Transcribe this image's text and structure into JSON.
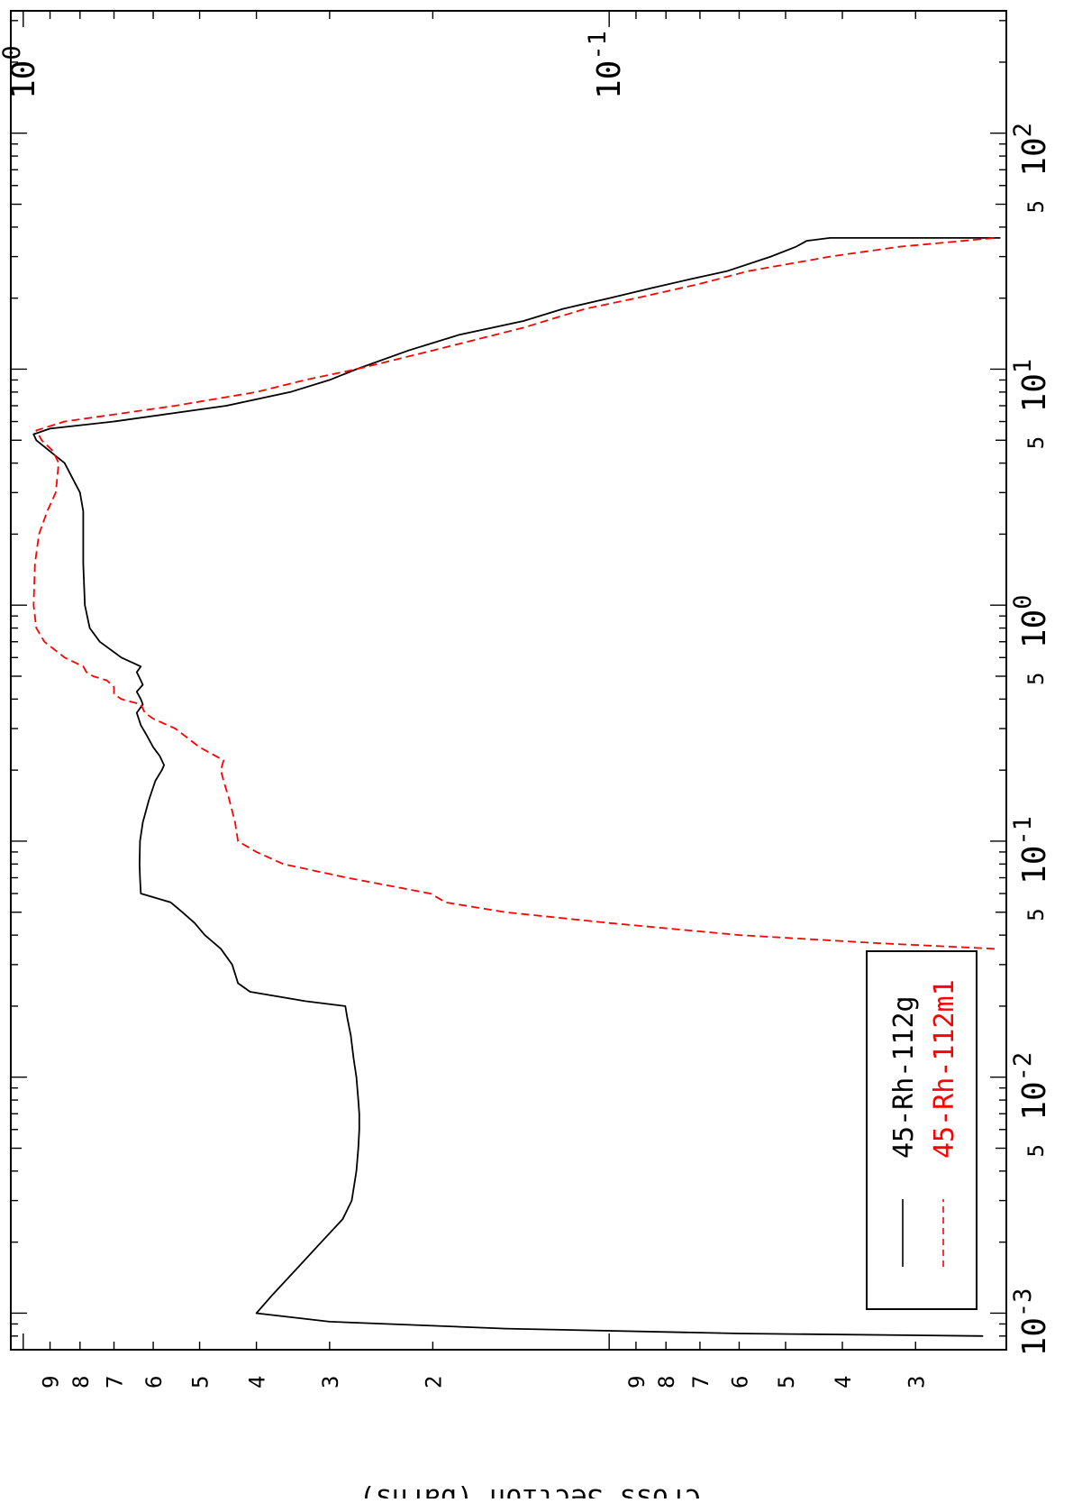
{
  "chart_data": {
    "type": "line",
    "title": "",
    "orientation": "rotated-90-ccw",
    "xlabel": "",
    "ylabel": "Cross Section (barns)",
    "x_scale": "log",
    "y_scale": "log",
    "xlim": [
      0.0007,
      330
    ],
    "ylim": [
      0.021,
      1.05
    ],
    "x_major_ticks": [
      {
        "value": 0.001,
        "base": "10",
        "exp": "-3"
      },
      {
        "value": 0.01,
        "base": "10",
        "exp": "-2"
      },
      {
        "value": 0.1,
        "base": "10",
        "exp": "-1"
      },
      {
        "value": 1,
        "base": "10",
        "exp": "0"
      },
      {
        "value": 10,
        "base": "10",
        "exp": "1"
      },
      {
        "value": 100,
        "base": "10",
        "exp": "2"
      }
    ],
    "x_minor_labels": [
      {
        "value": 0.005,
        "label": "5"
      },
      {
        "value": 0.05,
        "label": "5"
      },
      {
        "value": 0.5,
        "label": "5"
      },
      {
        "value": 5,
        "label": "5"
      },
      {
        "value": 50,
        "label": "5"
      }
    ],
    "y_major_ticks": [
      {
        "value": 0.1,
        "base": "10",
        "exp": "-1"
      },
      {
        "value": 1,
        "base": "10",
        "exp": "0"
      }
    ],
    "y_minor_labels": [
      {
        "value": 0.03,
        "label": "3"
      },
      {
        "value": 0.04,
        "label": "4"
      },
      {
        "value": 0.05,
        "label": "5"
      },
      {
        "value": 0.06,
        "label": "6"
      },
      {
        "value": 0.07,
        "label": "7"
      },
      {
        "value": 0.08,
        "label": "8"
      },
      {
        "value": 0.09,
        "label": "9"
      },
      {
        "value": 0.2,
        "label": "2"
      },
      {
        "value": 0.3,
        "label": "3"
      },
      {
        "value": 0.4,
        "label": "4"
      },
      {
        "value": 0.5,
        "label": "5"
      },
      {
        "value": 0.6,
        "label": "6"
      },
      {
        "value": 0.7,
        "label": "7"
      },
      {
        "value": 0.8,
        "label": "8"
      },
      {
        "value": 0.9,
        "label": "9"
      }
    ],
    "series": [
      {
        "name": "45-Rh-112g",
        "color": "#000000",
        "dash": "solid",
        "points": [
          [
            0.0008,
            0.023
          ],
          [
            0.00082,
            0.06
          ],
          [
            0.00086,
            0.15
          ],
          [
            0.00092,
            0.3
          ],
          [
            0.001,
            0.4
          ],
          [
            0.0012,
            0.375
          ],
          [
            0.0015,
            0.345
          ],
          [
            0.002,
            0.31
          ],
          [
            0.0025,
            0.285
          ],
          [
            0.003,
            0.275
          ],
          [
            0.004,
            0.27
          ],
          [
            0.005,
            0.268
          ],
          [
            0.006,
            0.267
          ],
          [
            0.007,
            0.267
          ],
          [
            0.008,
            0.268
          ],
          [
            0.01,
            0.27
          ],
          [
            0.012,
            0.273
          ],
          [
            0.015,
            0.276
          ],
          [
            0.018,
            0.28
          ],
          [
            0.02,
            0.282
          ],
          [
            0.021,
            0.33
          ],
          [
            0.023,
            0.41
          ],
          [
            0.025,
            0.43
          ],
          [
            0.03,
            0.44
          ],
          [
            0.035,
            0.46
          ],
          [
            0.04,
            0.49
          ],
          [
            0.045,
            0.51
          ],
          [
            0.05,
            0.535
          ],
          [
            0.055,
            0.56
          ],
          [
            0.06,
            0.63
          ],
          [
            0.07,
            0.632
          ],
          [
            0.08,
            0.633
          ],
          [
            0.1,
            0.632
          ],
          [
            0.12,
            0.625
          ],
          [
            0.15,
            0.61
          ],
          [
            0.18,
            0.595
          ],
          [
            0.2,
            0.58
          ],
          [
            0.21,
            0.575
          ],
          [
            0.23,
            0.585
          ],
          [
            0.25,
            0.6
          ],
          [
            0.28,
            0.615
          ],
          [
            0.31,
            0.63
          ],
          [
            0.35,
            0.64
          ],
          [
            0.38,
            0.625
          ],
          [
            0.4,
            0.63
          ],
          [
            0.43,
            0.64
          ],
          [
            0.46,
            0.625
          ],
          [
            0.48,
            0.63
          ],
          [
            0.52,
            0.64
          ],
          [
            0.55,
            0.63
          ],
          [
            0.6,
            0.68
          ],
          [
            0.7,
            0.74
          ],
          [
            0.8,
            0.77
          ],
          [
            1.0,
            0.785
          ],
          [
            1.5,
            0.79
          ],
          [
            2.0,
            0.79
          ],
          [
            2.5,
            0.79
          ],
          [
            3.0,
            0.8
          ],
          [
            4.0,
            0.85
          ],
          [
            5.0,
            0.95
          ],
          [
            5.3,
            0.96
          ],
          [
            5.6,
            0.9
          ],
          [
            6.0,
            0.7
          ],
          [
            7.0,
            0.45
          ],
          [
            8.0,
            0.35
          ],
          [
            9.0,
            0.3
          ],
          [
            10.0,
            0.27
          ],
          [
            12.0,
            0.22
          ],
          [
            14.0,
            0.18
          ],
          [
            16.0,
            0.14
          ],
          [
            18.0,
            0.12
          ],
          [
            20.0,
            0.1
          ],
          [
            22.0,
            0.085
          ],
          [
            24.0,
            0.073
          ],
          [
            26.0,
            0.063
          ],
          [
            30.0,
            0.053
          ],
          [
            33.0,
            0.048
          ],
          [
            35.0,
            0.046
          ],
          [
            36.0,
            0.042
          ],
          [
            36.0,
            0.0215
          ]
        ]
      },
      {
        "name": "45-Rh-112m1",
        "color": "#ff0000",
        "dash": "dashed",
        "points": [
          [
            0.035,
            0.022
          ],
          [
            0.037,
            0.035
          ],
          [
            0.04,
            0.06
          ],
          [
            0.045,
            0.1
          ],
          [
            0.05,
            0.15
          ],
          [
            0.055,
            0.19
          ],
          [
            0.06,
            0.202
          ],
          [
            0.07,
            0.28
          ],
          [
            0.08,
            0.36
          ],
          [
            0.09,
            0.4
          ],
          [
            0.1,
            0.43
          ],
          [
            0.12,
            0.435
          ],
          [
            0.15,
            0.445
          ],
          [
            0.18,
            0.455
          ],
          [
            0.2,
            0.46
          ],
          [
            0.22,
            0.455
          ],
          [
            0.25,
            0.5
          ],
          [
            0.3,
            0.55
          ],
          [
            0.33,
            0.6
          ],
          [
            0.35,
            0.62
          ],
          [
            0.38,
            0.63
          ],
          [
            0.4,
            0.68
          ],
          [
            0.42,
            0.7
          ],
          [
            0.45,
            0.7
          ],
          [
            0.48,
            0.72
          ],
          [
            0.5,
            0.76
          ],
          [
            0.52,
            0.78
          ],
          [
            0.55,
            0.79
          ],
          [
            0.6,
            0.85
          ],
          [
            0.7,
            0.92
          ],
          [
            0.8,
            0.95
          ],
          [
            1.0,
            0.96
          ],
          [
            1.5,
            0.955
          ],
          [
            2.0,
            0.94
          ],
          [
            2.5,
            0.91
          ],
          [
            3.0,
            0.88
          ],
          [
            4.0,
            0.87
          ],
          [
            4.5,
            0.89
          ],
          [
            5.0,
            0.93
          ],
          [
            5.5,
            0.95
          ],
          [
            6.0,
            0.85
          ],
          [
            7.0,
            0.55
          ],
          [
            8.0,
            0.4
          ],
          [
            9.0,
            0.33
          ],
          [
            10.0,
            0.27
          ],
          [
            12.0,
            0.2
          ],
          [
            15.0,
            0.14
          ],
          [
            18.0,
            0.11
          ],
          [
            20.0,
            0.09
          ],
          [
            23.0,
            0.07
          ],
          [
            26.0,
            0.058
          ],
          [
            30.0,
            0.042
          ],
          [
            33.0,
            0.032
          ],
          [
            36.0,
            0.022
          ]
        ]
      }
    ],
    "legend": {
      "position": "lower-left of plot (rotated)",
      "entries": [
        "45-Rh-112g",
        "45-Rh-112m1"
      ]
    },
    "grid": false
  }
}
